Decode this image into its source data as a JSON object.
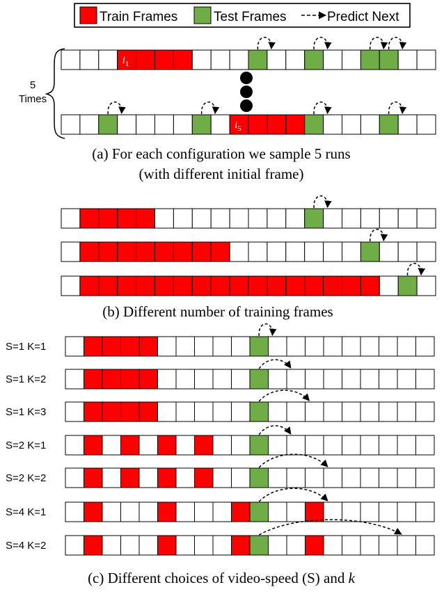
{
  "legend": {
    "train_label": "Train Frames",
    "test_label": "Test Frames",
    "predict_label": "Predict Next"
  },
  "colors": {
    "train": "#ff0000",
    "test": "#70ad47",
    "empty": "#ffffff",
    "border": "#000000"
  },
  "panel_a": {
    "brace_label_line1": "5",
    "brace_label_line2": "Times",
    "caption_line1": "(a) For each configuration we sample 5 runs",
    "caption_line2": "(with different initial frame)",
    "strips": [
      {
        "cells": 20,
        "train": [
          3,
          4,
          5,
          6
        ],
        "test": [
          10,
          13,
          16,
          17
        ],
        "initial_label": {
          "cell": 3,
          "letter": "i",
          "sub": "1"
        },
        "arrows": [
          {
            "from": 10,
            "span": 1
          },
          {
            "from": 13,
            "span": 1
          },
          {
            "from": 16,
            "span": 1
          },
          {
            "from": 17,
            "span": 1
          }
        ]
      },
      {
        "cells": 20,
        "train": [
          9,
          10,
          11,
          12
        ],
        "test": [
          2,
          7,
          13,
          17
        ],
        "initial_label": {
          "cell": 9,
          "letter": "i",
          "sub": "5"
        },
        "arrows": [
          {
            "from": 2,
            "span": 1
          },
          {
            "from": 7,
            "span": 1
          },
          {
            "from": 13,
            "span": 1
          },
          {
            "from": 17,
            "span": 1
          }
        ]
      }
    ]
  },
  "panel_b": {
    "caption": "(b) Different number of training frames",
    "strips": [
      {
        "cells": 20,
        "train": [
          1,
          2,
          3,
          4
        ],
        "test": [
          13
        ],
        "arrows": [
          {
            "from": 13,
            "span": 1
          }
        ]
      },
      {
        "cells": 20,
        "train": [
          1,
          2,
          3,
          4,
          5,
          6,
          7,
          8
        ],
        "test": [
          16
        ],
        "arrows": [
          {
            "from": 16,
            "span": 1
          }
        ]
      },
      {
        "cells": 20,
        "train": [
          1,
          2,
          3,
          4,
          5,
          6,
          7,
          8,
          9,
          10,
          11,
          12,
          13,
          14,
          15,
          16
        ],
        "test": [
          18
        ],
        "arrows": [
          {
            "from": 18,
            "span": 1
          }
        ]
      }
    ]
  },
  "panel_c": {
    "caption_text": "(c) Different choices of video-speed (S) and ",
    "caption_k": "k",
    "strips": [
      {
        "label": "S=1 K=1",
        "cells": 20,
        "train": [
          1,
          2,
          3,
          4
        ],
        "test": [
          10
        ],
        "arrows": [
          {
            "from": 10,
            "span": 1
          }
        ]
      },
      {
        "label": "S=1 K=2",
        "cells": 20,
        "train": [
          1,
          2,
          3,
          4
        ],
        "test": [
          10
        ],
        "arrows": [
          {
            "from": 10,
            "span": 2
          }
        ]
      },
      {
        "label": "S=1 K=3",
        "cells": 20,
        "train": [
          1,
          2,
          3,
          4
        ],
        "test": [
          10
        ],
        "arrows": [
          {
            "from": 10,
            "span": 3
          }
        ]
      },
      {
        "label": "S=2 K=1",
        "cells": 20,
        "train": [
          1,
          3,
          5,
          7
        ],
        "test": [
          10
        ],
        "arrows": [
          {
            "from": 10,
            "span": 2
          }
        ]
      },
      {
        "label": "S=2 K=2",
        "cells": 20,
        "train": [
          1,
          3,
          5,
          7
        ],
        "test": [
          10
        ],
        "arrows": [
          {
            "from": 10,
            "span": 4
          }
        ]
      },
      {
        "label": "S=4 K=1",
        "cells": 20,
        "train": [
          1,
          5,
          9,
          13
        ],
        "test": [
          10
        ],
        "arrows": [
          {
            "from": 10,
            "span": 4
          }
        ]
      },
      {
        "label": "S=4 K=2",
        "cells": 20,
        "train": [
          1,
          5,
          9,
          13
        ],
        "test": [
          10
        ],
        "arrows": [
          {
            "from": 10,
            "span": 8
          }
        ]
      }
    ]
  }
}
